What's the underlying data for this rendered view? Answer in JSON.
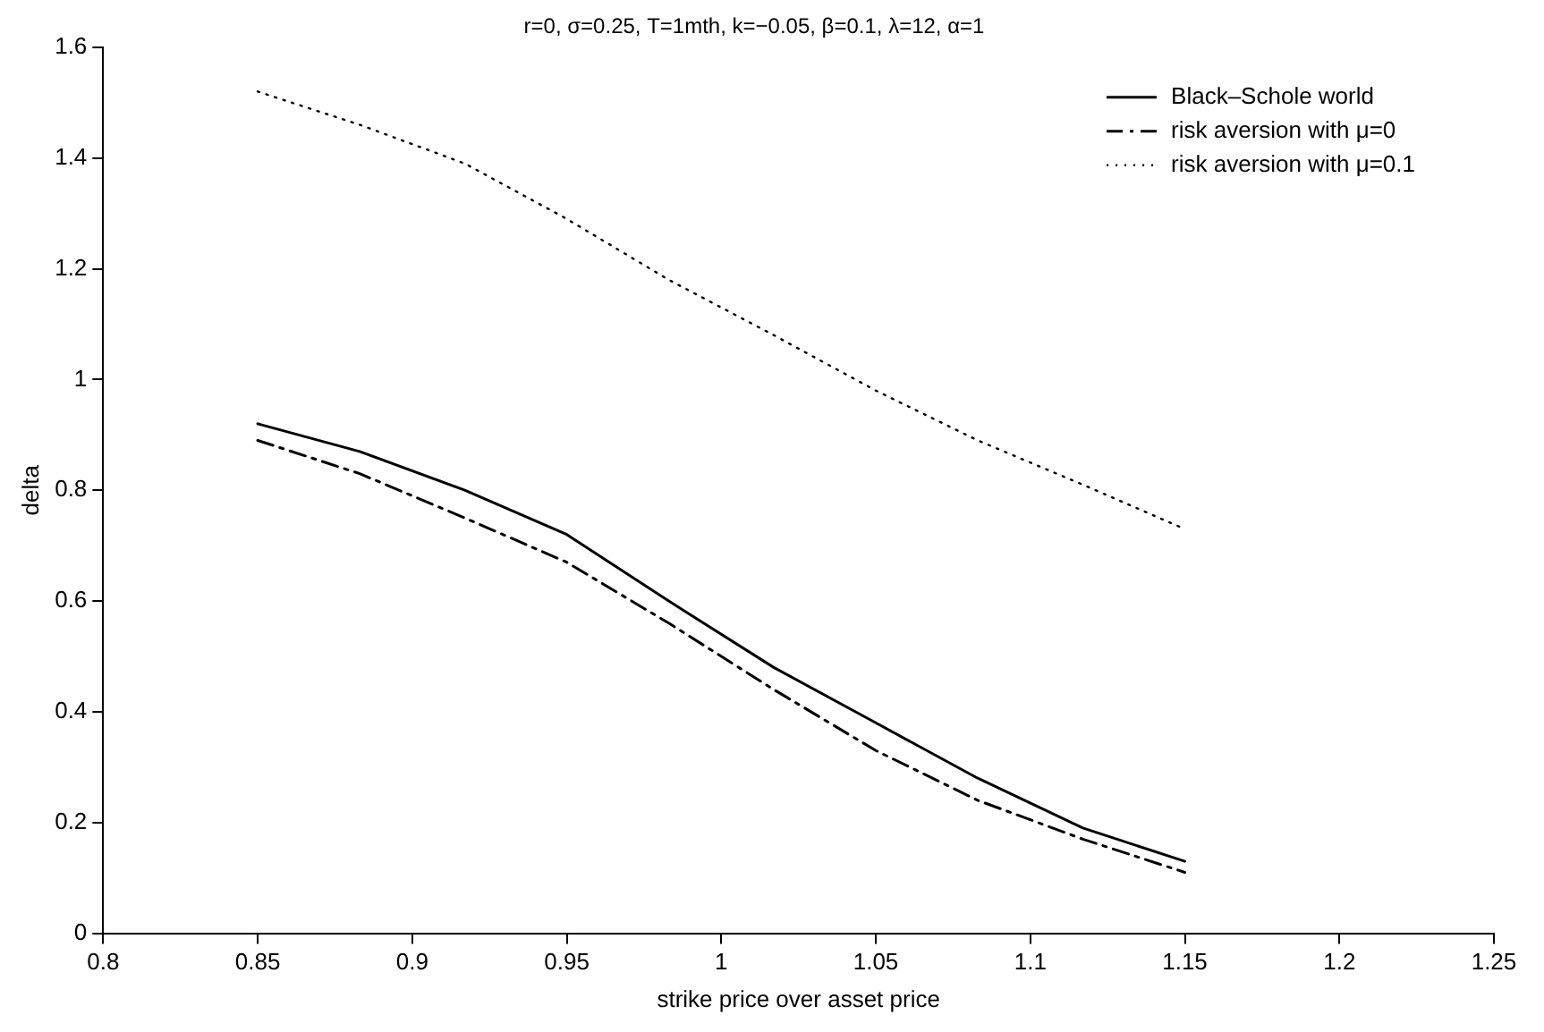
{
  "chart_data": {
    "type": "line",
    "title": "r=0, σ=0.25, T=1mth, k=−0.05, β=0.1, λ=12, α=1",
    "xlabel": "strike price over asset price",
    "ylabel": "delta",
    "x": [
      0.85,
      0.883,
      0.917,
      0.95,
      0.983,
      1.017,
      1.05,
      1.083,
      1.117,
      1.15
    ],
    "series": [
      {
        "name": "Black–Schole world",
        "color": "#000000",
        "line_style": "solid",
        "values": [
          0.92,
          0.87,
          0.8,
          0.72,
          0.6,
          0.48,
          0.38,
          0.28,
          0.19,
          0.13
        ]
      },
      {
        "name": "risk aversion with μ=0",
        "color": "#000000",
        "line_style": "dashed",
        "values": [
          0.89,
          0.83,
          0.75,
          0.67,
          0.56,
          0.44,
          0.33,
          0.24,
          0.17,
          0.11
        ]
      },
      {
        "name": "risk aversion with μ=0.1",
        "color": "#000000",
        "line_style": "dotted",
        "values": [
          1.52,
          1.46,
          1.39,
          1.29,
          1.18,
          1.08,
          0.98,
          0.89,
          0.81,
          0.73
        ]
      }
    ],
    "xlim": [
      0.8,
      1.25
    ],
    "xticks": [
      0.8,
      0.85,
      0.9,
      0.95,
      1,
      1.05,
      1.1,
      1.15,
      1.2,
      1.25
    ],
    "ylim": [
      0,
      1.6
    ],
    "yticks": [
      0,
      0.2,
      0.4,
      0.6,
      0.8,
      1,
      1.2,
      1.4,
      1.6
    ],
    "grid": false,
    "legend": "top right",
    "marker": "none"
  }
}
